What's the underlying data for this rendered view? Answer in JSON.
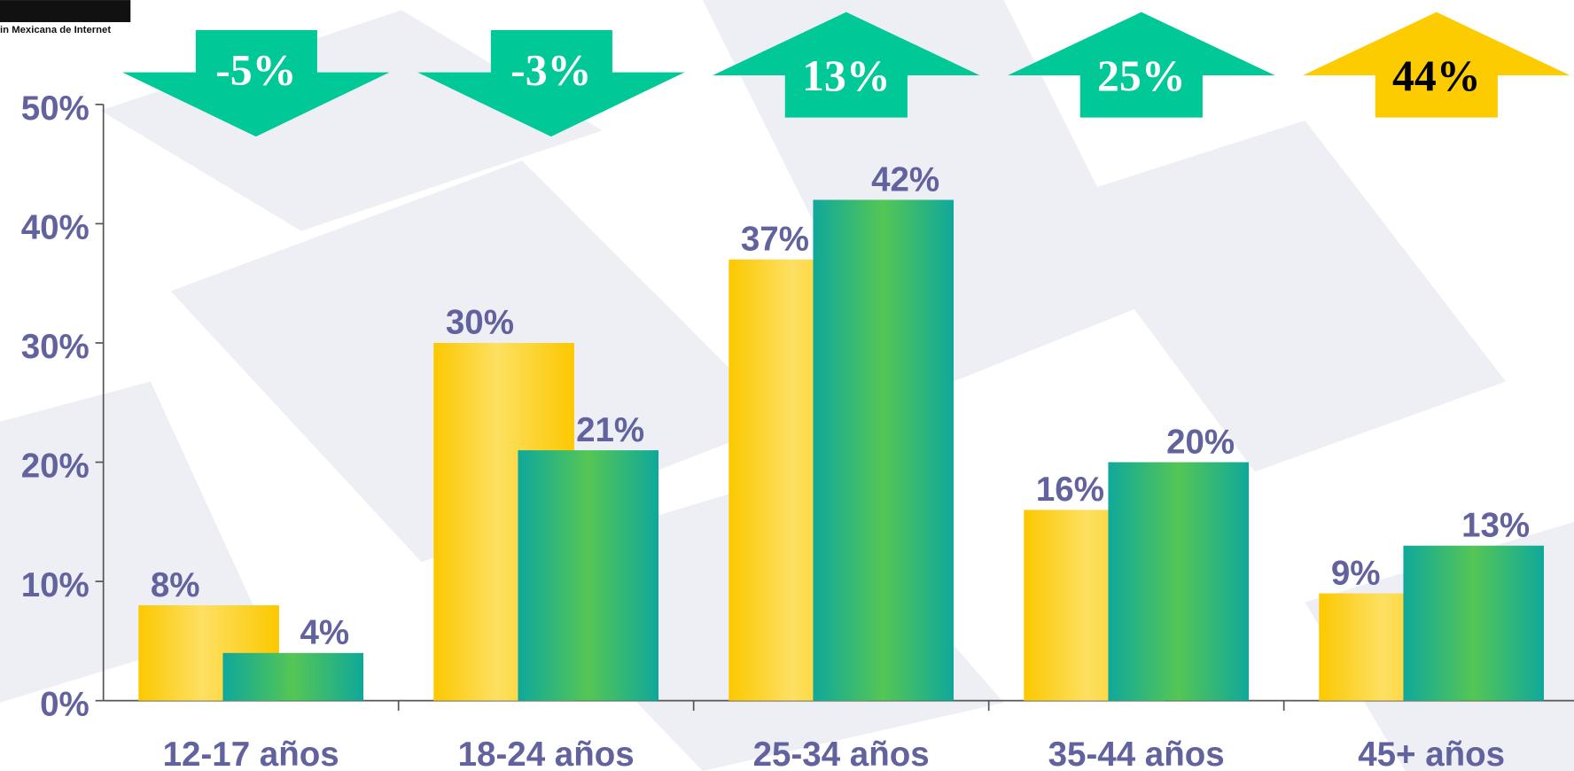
{
  "chart_data": {
    "type": "bar",
    "logo": "in Mexicana de Internet",
    "categories": [
      "12-17 años",
      "18-24 años",
      "25-34 años",
      "35-44 años",
      "45+ años"
    ],
    "series": [
      {
        "color": "#fcc800",
        "values": [
          8,
          30,
          37,
          16,
          9
        ],
        "value_labels": [
          "8%",
          "30%",
          "37%",
          "16%",
          "9%"
        ]
      },
      {
        "color": "#0fa89a",
        "values": [
          4,
          21,
          42,
          20,
          13
        ],
        "value_labels": [
          "4%",
          "21%",
          "42%",
          "20%",
          "13%"
        ]
      }
    ],
    "changes": {
      "values": [
        -5,
        -3,
        13,
        25,
        44
      ],
      "value_labels": [
        "-5%",
        "-3%",
        "13%",
        "25%",
        "44%"
      ],
      "colors": [
        "#00c897",
        "#00c897",
        "#00c897",
        "#00c897",
        "#fccb00"
      ]
    },
    "ylim": [
      0,
      50
    ],
    "yticks": [
      {
        "value": 0,
        "label": "0%"
      },
      {
        "value": 10,
        "label": "10%"
      },
      {
        "value": 20,
        "label": "20%"
      },
      {
        "value": 30,
        "label": "30%"
      },
      {
        "value": 40,
        "label": "40%"
      },
      {
        "value": 50,
        "label": "50%"
      }
    ]
  }
}
